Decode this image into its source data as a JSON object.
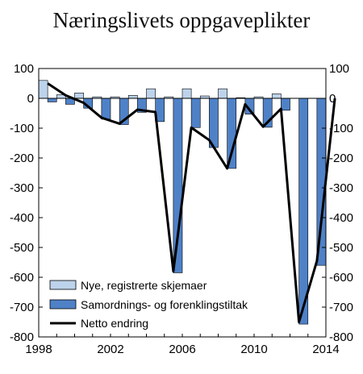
{
  "chart_data": {
    "type": "bar",
    "title": "Næringslivets oppgaveplikter",
    "xlabel": "",
    "ylabel": "",
    "ylim": [
      -800,
      100
    ],
    "yticks": [
      100,
      0,
      -100,
      -200,
      -300,
      -400,
      -500,
      -600,
      -700,
      -800
    ],
    "xlim": [
      1998,
      2014
    ],
    "xticks": [
      1998,
      2002,
      2006,
      2010,
      2014
    ],
    "grid": false,
    "legend": "bottom-left",
    "categories": [
      1998,
      1999,
      2000,
      2001,
      2002,
      2003,
      2004,
      2005,
      2006,
      2007,
      2008,
      2009,
      2010,
      2011,
      2012,
      2013
    ],
    "series": [
      {
        "name": "Nye, registrerte skjemaer",
        "type": "bar",
        "color": "#bcd3eb",
        "values": [
          60,
          12,
          18,
          5,
          5,
          10,
          32,
          5,
          32,
          8,
          32,
          2,
          5,
          15,
          0,
          0
        ]
      },
      {
        "name": "Samordnings- og forenklingstiltak",
        "type": "bar",
        "color": "#4f81c7",
        "values": [
          -12,
          -20,
          -33,
          -70,
          -88,
          -47,
          -78,
          -585,
          -98,
          -165,
          -235,
          -53,
          -97,
          -40,
          -757,
          -560
        ]
      },
      {
        "name": "Netto endring",
        "type": "line",
        "color": "#000000",
        "x": [
          1998,
          1999,
          2000,
          2001,
          2002,
          2003,
          2004,
          2005,
          2006,
          2007,
          2008,
          2009,
          2010,
          2011,
          2012,
          2013,
          2014
        ],
        "values": [
          50,
          10,
          -15,
          -65,
          -85,
          -38,
          -46,
          -580,
          -98,
          -140,
          -235,
          -20,
          -95,
          -35,
          -750,
          -545,
          0
        ]
      }
    ]
  }
}
